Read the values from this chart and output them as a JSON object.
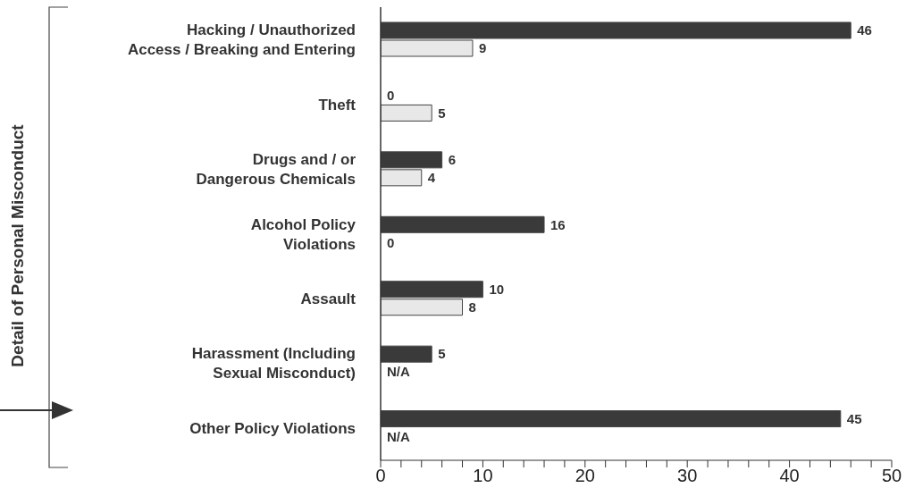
{
  "chart_data": {
    "type": "bar",
    "orientation": "horizontal",
    "annotations": [
      "Detail of Personal Misconduct"
    ],
    "categories": [
      "Hacking / Unauthorized\nAccess / Breaking and Entering",
      "Theft",
      "Drugs and / or\nDangerous Chemicals",
      "Alcohol Policy\nViolations",
      "Assault",
      "Harassment (Including\nSexual Misconduct)",
      "Other Policy Violations"
    ],
    "series": [
      {
        "color": "#3a3a3a",
        "values": [
          46,
          0,
          6,
          16,
          10,
          5,
          45
        ],
        "value_labels": [
          "46",
          "0",
          "6",
          "16",
          "10",
          "5",
          "45"
        ]
      },
      {
        "color": "#e8e8e8",
        "values": [
          9,
          5,
          4,
          0,
          8,
          null,
          null
        ],
        "value_labels": [
          "9",
          "5",
          "4",
          "0",
          "8",
          "N/A",
          "N/A"
        ]
      }
    ],
    "xlim": [
      0,
      50
    ],
    "xticks": [
      0,
      {
        "value": 2,
        "label": null
      },
      {
        "value": 4,
        "label": null
      },
      {
        "value": 6,
        "label": null
      },
      {
        "value": 8,
        "label": null
      },
      10,
      {
        "value": 12,
        "label": null
      },
      {
        "value": 14,
        "label": null
      },
      {
        "value": 16,
        "label": null
      },
      {
        "value": 18,
        "label": null
      },
      20,
      {
        "value": 22,
        "label": null
      },
      {
        "value": 24,
        "label": null
      },
      {
        "value": 26,
        "label": null
      },
      {
        "value": 28,
        "label": null
      },
      30,
      {
        "value": 32,
        "label": null
      },
      {
        "value": 34,
        "label": null
      },
      {
        "value": 36,
        "label": null
      },
      {
        "value": 38,
        "label": null
      },
      40,
      {
        "value": 42,
        "label": null
      },
      {
        "value": 44,
        "label": null
      },
      {
        "value": 46,
        "label": null
      },
      {
        "value": 48,
        "label": null
      },
      50
    ],
    "grid": false,
    "legend": false
  }
}
